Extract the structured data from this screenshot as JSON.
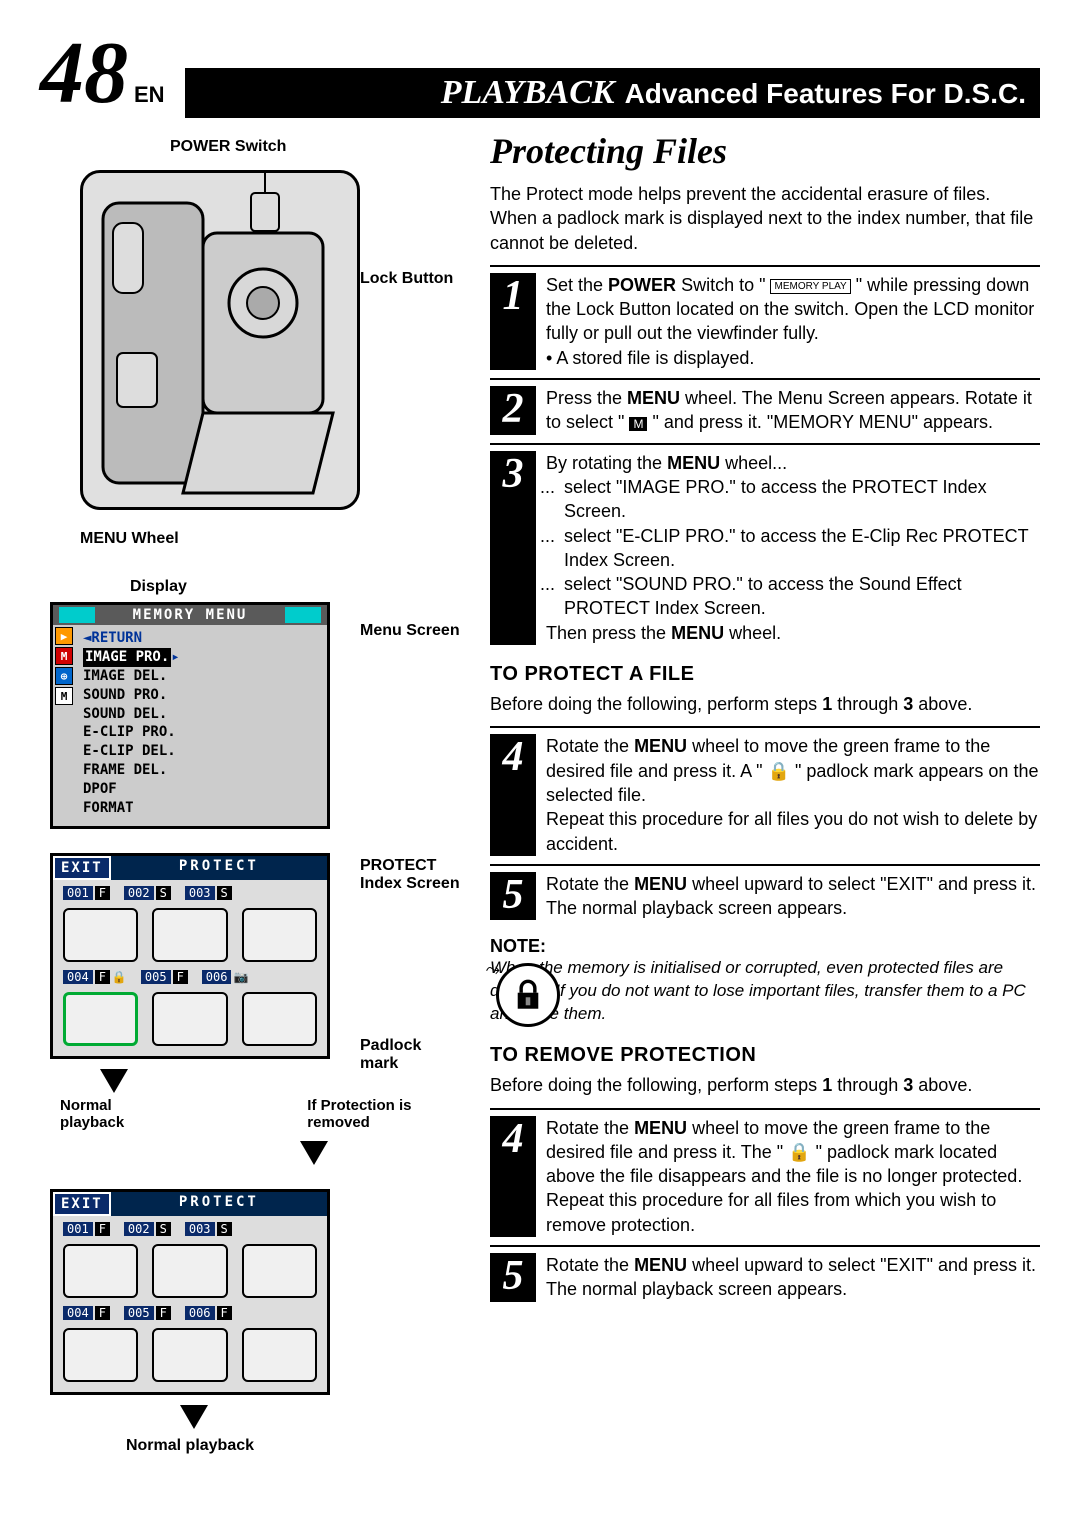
{
  "page": {
    "number": "48",
    "lang": "EN"
  },
  "header": {
    "playback": "PLAYBACK",
    "subtitle": "Advanced Features For D.S.C."
  },
  "title": "Protecting Files",
  "intro": "The Protect mode helps prevent the accidental erasure of files. When a padlock mark is displayed next to the index number, that file cannot be deleted.",
  "steps_main": {
    "1": {
      "a": "Set the ",
      "b": "POWER",
      "c": " Switch to \" ",
      "d": "MEMORY PLAY",
      "e": " \" while pressing down the Lock Button located on the switch. Open the LCD monitor fully or pull out the viewfinder fully.",
      "bullet": "A stored file is displayed."
    },
    "2": {
      "a": "Press the ",
      "b": "MENU",
      "c": " wheel. The Menu Screen appears. Rotate it to select \" ",
      "d": "M",
      "e": " \" and press it. \"MEMORY MENU\" appears."
    },
    "3": {
      "a": "By rotating the ",
      "b": "MENU",
      "c": " wheel...",
      "li1": "select \"IMAGE PRO.\" to access the PROTECT Index Screen.",
      "li2": "select \"E-CLIP PRO.\" to access the E-Clip Rec PROTECT Index Screen.",
      "li3": "select \"SOUND PRO.\" to access the Sound Effect PROTECT Index Screen.",
      "end_a": "Then press the ",
      "end_b": "MENU",
      "end_c": " wheel."
    }
  },
  "protect": {
    "heading": "TO PROTECT A FILE",
    "intro_a": "Before doing the following, perform steps ",
    "intro_b": "1",
    "intro_c": " through ",
    "intro_d": "3",
    "intro_e": " above.",
    "4": {
      "a": "Rotate the ",
      "b": "MENU",
      "c": " wheel to move the green frame to the desired file and press it. A \" ",
      "d": "🔒",
      "e": " \" padlock mark appears on the selected file.",
      "f": "Repeat this procedure for all files you do not wish to delete by accident."
    },
    "5": {
      "a": "Rotate the ",
      "b": "MENU",
      "c": " wheel upward to select \"EXIT\" and press it. The normal playback screen appears."
    }
  },
  "note": {
    "label": "NOTE:",
    "body": "When the memory is initialised or corrupted, even protected files are deleted. If you do not want to lose important files, transfer them to a PC and save them."
  },
  "remove": {
    "heading": "TO REMOVE PROTECTION",
    "intro_a": "Before doing the following, perform steps ",
    "intro_b": "1",
    "intro_c": " through ",
    "intro_d": "3",
    "intro_e": " above.",
    "4": {
      "a": "Rotate the ",
      "b": "MENU",
      "c": " wheel to move the green frame to the desired file and press it. The \" ",
      "d": "🔒",
      "e": " \" padlock mark located above the file disappears and the file is no longer protected.",
      "f": "Repeat this procedure for all files from which you wish to remove protection."
    },
    "5": {
      "a": "Rotate the ",
      "b": "MENU",
      "c": " wheel upward to select \"EXIT\" and press it. The normal playback screen appears."
    }
  },
  "labels": {
    "power_switch": "POWER Switch",
    "lock_button": "Lock Button",
    "menu_wheel": "MENU Wheel",
    "display": "Display",
    "menu_screen": "Menu Screen",
    "protect_index": "PROTECT Index Screen",
    "padlock_mark": "Padlock mark",
    "normal_playback": "Normal playback",
    "if_removed": "If Protection is removed"
  },
  "menu": {
    "title": "MEMORY MENU",
    "return": "◄RETURN",
    "items": [
      "IMAGE PRO.",
      "IMAGE DEL.",
      "SOUND PRO.",
      "SOUND DEL.",
      "E-CLIP PRO.",
      "E-CLIP DEL.",
      "FRAME DEL.",
      "DPOF",
      "FORMAT"
    ],
    "side_icons": [
      "▶",
      "M",
      "⊕",
      "M"
    ],
    "side_bg": [
      "#ff9900",
      "#d00000",
      "#0066cc",
      "#ffffff"
    ],
    "side_fg": [
      "#ffffff",
      "#ffffff",
      "#ffffff",
      "#000000"
    ]
  },
  "protect_screen": {
    "exit": "EXIT",
    "protect": "PROTECT",
    "files_top": [
      {
        "num": "001",
        "tag": "F",
        "lock": false
      },
      {
        "num": "002",
        "tag": "S",
        "lock": false
      },
      {
        "num": "003",
        "tag": "S",
        "lock": false
      }
    ],
    "files_bottom_a": [
      {
        "num": "004",
        "tag": "F",
        "lock": true,
        "green": true
      },
      {
        "num": "005",
        "tag": "F",
        "lock": false
      },
      {
        "num": "006",
        "tag": "",
        "lock": false,
        "icon": true
      }
    ],
    "files_bottom_b": [
      {
        "num": "004",
        "tag": "F",
        "lock": false
      },
      {
        "num": "005",
        "tag": "F",
        "lock": false
      },
      {
        "num": "006",
        "tag": "F",
        "lock": false
      }
    ]
  },
  "colors": {
    "accent_blue": "#0a2a6a",
    "teal": "#00cccc",
    "green_frame": "#00aa33"
  }
}
